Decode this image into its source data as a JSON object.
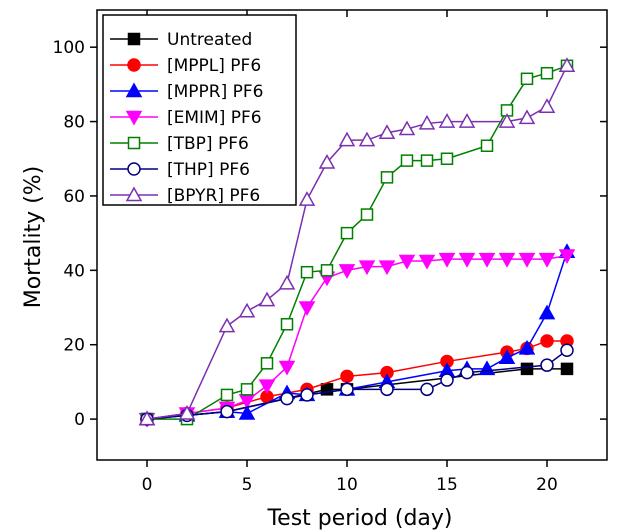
{
  "chart_data": {
    "type": "line",
    "xlabel": "Test period (day)",
    "ylabel": "Mortality (%)",
    "xlim": [
      -2.5,
      23
    ],
    "ylim": [
      -11,
      110
    ],
    "xticks": [
      0,
      5,
      10,
      15,
      20
    ],
    "yticks": [
      0,
      20,
      40,
      60,
      80,
      100
    ],
    "grid": false,
    "legend_position": "top-left",
    "series": [
      {
        "name": "Untreated",
        "color": "#000000",
        "marker": "square",
        "filled": true,
        "x": [
          0,
          2,
          4,
          9,
          10,
          19,
          21
        ],
        "y": [
          0,
          1,
          2,
          8,
          8,
          13.5,
          13.5
        ]
      },
      {
        "name": "[MPPL] PF6",
        "color": "#ff0000",
        "marker": "circle",
        "filled": true,
        "x": [
          0,
          2,
          4,
          6,
          8,
          10,
          12,
          15,
          18,
          19,
          20,
          21
        ],
        "y": [
          0,
          1.5,
          3,
          6,
          8,
          11.5,
          12.5,
          15.5,
          18,
          19,
          21,
          21
        ]
      },
      {
        "name": "[MPPR] PF6",
        "color": "#0000ff",
        "marker": "triangle-up",
        "filled": true,
        "x": [
          0,
          2,
          4,
          5,
          7,
          8,
          10,
          12,
          15,
          16,
          17,
          18,
          19,
          20,
          21
        ],
        "y": [
          0,
          1,
          2,
          1.5,
          7,
          6.5,
          8,
          10,
          13,
          13.5,
          13.5,
          16.5,
          19,
          28.5,
          45
        ]
      },
      {
        "name": "[EMIM] PF6",
        "color": "#ff00ff",
        "marker": "triangle-down",
        "filled": true,
        "x": [
          0,
          2,
          4,
          5,
          6,
          7,
          8,
          9,
          10,
          11,
          12,
          13,
          14,
          15,
          16,
          17,
          18,
          19,
          20,
          21
        ],
        "y": [
          0,
          1.5,
          3,
          5,
          9,
          14,
          30,
          38,
          40,
          41,
          41,
          42.5,
          42.5,
          43,
          43,
          43,
          43,
          43,
          43,
          44
        ]
      },
      {
        "name": "[TBP] PF6",
        "color": "#008000",
        "marker": "square",
        "filled": false,
        "x": [
          0,
          2,
          4,
          5,
          6,
          7,
          8,
          9,
          10,
          11,
          12,
          13,
          14,
          15,
          17,
          18,
          19,
          20,
          21
        ],
        "y": [
          0,
          0,
          6.5,
          8,
          15,
          25.5,
          39.5,
          40,
          50,
          55,
          65,
          69.5,
          69.5,
          70,
          73.5,
          83,
          91.5,
          93,
          95
        ]
      },
      {
        "name": "[THP] PF6",
        "color": "#000080",
        "marker": "circle",
        "filled": false,
        "x": [
          0,
          2,
          4,
          7,
          8,
          10,
          12,
          14,
          15,
          16,
          20,
          21
        ],
        "y": [
          0,
          1,
          2,
          5.5,
          6.5,
          8,
          8,
          8,
          10.5,
          12.5,
          14.5,
          18.5
        ]
      },
      {
        "name": "[BPYR] PF6",
        "color": "#7b30b0",
        "marker": "triangle-up",
        "filled": false,
        "x": [
          0,
          2,
          4,
          5,
          6,
          7,
          8,
          9,
          10,
          11,
          12,
          13,
          14,
          15,
          16,
          18,
          19,
          20,
          21
        ],
        "y": [
          0,
          1.5,
          25,
          29,
          32,
          36.5,
          59,
          69,
          75,
          75,
          77,
          78,
          79.5,
          80,
          80,
          80,
          81,
          84,
          95
        ]
      }
    ]
  }
}
